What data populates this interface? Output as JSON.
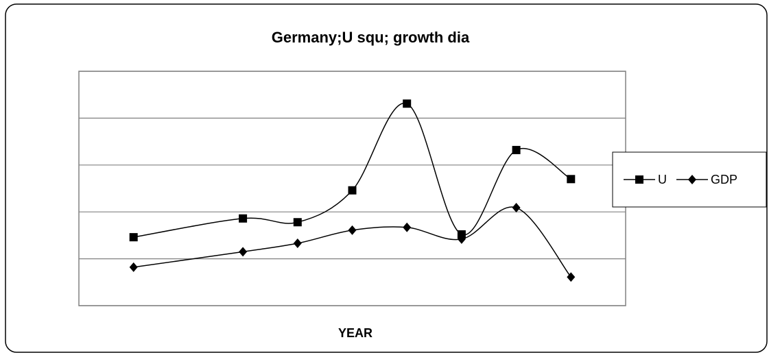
{
  "chart_data": {
    "type": "line",
    "title": "Germany;U squ; growth dia",
    "xlabel": "YEAR",
    "x": [
      1,
      3,
      4,
      5,
      6,
      7,
      8,
      9
    ],
    "xlim": [
      0,
      10
    ],
    "ylim": [
      0,
      5
    ],
    "yticks": [
      0,
      1,
      2,
      3,
      4,
      5
    ],
    "grid": true,
    "legend": "right",
    "series": [
      {
        "name": "U",
        "color": "#000000",
        "marker": "square",
        "values": [
          1.46,
          1.86,
          1.78,
          2.46,
          4.31,
          1.52,
          3.32,
          2.7
        ]
      },
      {
        "name": "GDP",
        "color": "#000000",
        "marker": "diamond",
        "values": [
          0.82,
          1.15,
          1.33,
          1.61,
          1.67,
          1.42,
          2.09,
          0.61
        ]
      }
    ]
  }
}
